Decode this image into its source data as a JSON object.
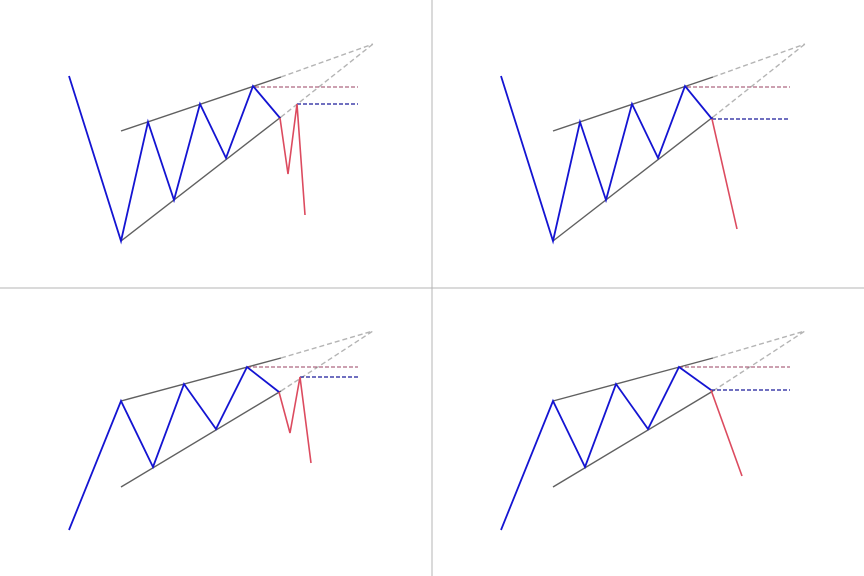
{
  "figure": {
    "description_colors": {
      "background": "#ffffff",
      "divider": "#b4b4b4",
      "pattern": "#1414d2",
      "breakout": "#dc4b5f",
      "trendline": "#606060",
      "projection": "#b4b4b4",
      "resistance_level": "#9a4060",
      "support_level": "#1a1a9a"
    },
    "panels": [
      {
        "id": "top-left",
        "variant": "v-start-retest"
      },
      {
        "id": "top-right",
        "variant": "v-start-direct-break"
      },
      {
        "id": "bottom-left",
        "variant": "rise-start-retest"
      },
      {
        "id": "bottom-right",
        "variant": "rise-start-direct-break"
      }
    ]
  }
}
